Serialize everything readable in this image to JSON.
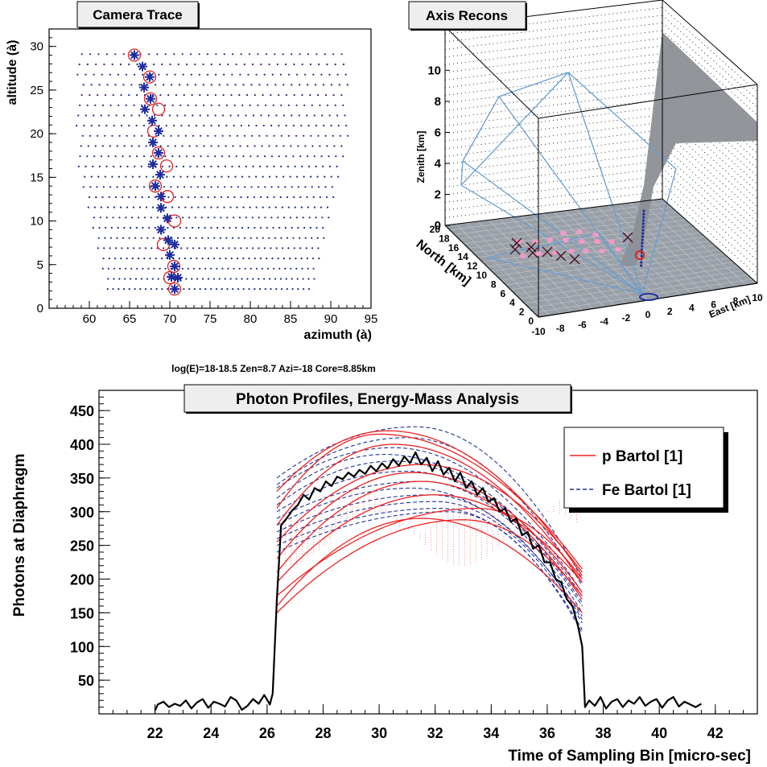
{
  "camera_panel": {
    "title": "Camera Trace",
    "xlabel": "azimuth (à)",
    "ylabel": "altitude (à)"
  },
  "axis_panel": {
    "title": "Axis Recons",
    "zlabel": "Zenith [km]",
    "north_label": "North [km]",
    "east_label": "East [km]",
    "z_ticks": [
      "0",
      "2",
      "4",
      "6",
      "8",
      "10"
    ],
    "north_ticks": [
      "0",
      "2",
      "4",
      "6",
      "8",
      "10",
      "12",
      "14",
      "16",
      "18",
      "20"
    ],
    "east_ticks": [
      "-10",
      "-8",
      "-6",
      "-4",
      "-2",
      "0",
      "2",
      "4",
      "6",
      "8",
      "10"
    ]
  },
  "event_info": "log(E)=18-18.5   Zen=8.7   Azi=-18   Core=8.85km",
  "profile_panel": {
    "title": "Photon Profiles, Energy-Mass Analysis",
    "xlabel": "Time of Sampling Bin [micro-sec]",
    "ylabel": "Photons at Diaphragm",
    "legend": [
      {
        "label": "p Bartol [1]",
        "color": "#ee2222",
        "style": "solid"
      },
      {
        "label": "Fe Bartol [1]",
        "color": "#223399",
        "style": "dashed"
      }
    ]
  },
  "chart_data": [
    {
      "type": "scatter",
      "title": "Camera Trace",
      "xlabel": "azimuth (à)",
      "ylabel": "altitude (à)",
      "xlim": [
        55,
        95
      ],
      "ylim": [
        0,
        32
      ],
      "xticks": [
        60,
        65,
        70,
        75,
        80,
        85,
        90,
        95
      ],
      "yticks": [
        0,
        5,
        10,
        15,
        20,
        25,
        30
      ],
      "grid": false,
      "hit_pixels": [
        [
          65.6,
          29.0
        ],
        [
          66.6,
          27.7
        ],
        [
          67.5,
          26.5
        ],
        [
          66.8,
          25.3
        ],
        [
          67.6,
          24.0
        ],
        [
          66.9,
          22.8
        ],
        [
          67.8,
          21.5
        ],
        [
          68.6,
          20.3
        ],
        [
          67.9,
          19.0
        ],
        [
          68.6,
          17.8
        ],
        [
          67.9,
          16.5
        ],
        [
          68.8,
          15.3
        ],
        [
          68.2,
          14.0
        ],
        [
          68.9,
          12.8
        ],
        [
          68.9,
          11.5
        ],
        [
          69.7,
          10.3
        ],
        [
          68.9,
          9.0
        ],
        [
          69.8,
          7.8
        ],
        [
          70.6,
          7.3
        ],
        [
          70.0,
          6.1
        ],
        [
          70.6,
          4.8
        ],
        [
          70.2,
          3.6
        ],
        [
          71.0,
          3.5
        ],
        [
          70.6,
          2.2
        ]
      ],
      "fitted_circles": [
        [
          65.6,
          29.0
        ],
        [
          67.5,
          26.5
        ],
        [
          67.6,
          24.0
        ],
        [
          68.6,
          22.8
        ],
        [
          68.0,
          20.3
        ],
        [
          68.6,
          17.8
        ],
        [
          69.6,
          16.3
        ],
        [
          68.2,
          14.0
        ],
        [
          69.7,
          12.8
        ],
        [
          70.6,
          10.0
        ],
        [
          69.2,
          7.3
        ],
        [
          70.5,
          4.8
        ],
        [
          70.0,
          3.5
        ],
        [
          70.6,
          2.2
        ]
      ]
    },
    {
      "type": "scatter",
      "title": "Axis Recons",
      "zlabel": "Zenith [km]",
      "xlabel": "East [km]",
      "ylabel": "North [km]",
      "xlim": [
        -10,
        10
      ],
      "ylim": [
        0,
        20
      ],
      "zlim": [
        0,
        10
      ],
      "cross_marks": 8
    },
    {
      "type": "line",
      "title": "Photon Profiles, Energy-Mass Analysis",
      "xlabel": "Time of Sampling Bin [micro-sec]",
      "ylabel": "Photons at Diaphragm",
      "xlim": [
        20,
        43.5
      ],
      "ylim": [
        0,
        480
      ],
      "xticks": [
        22,
        24,
        26,
        28,
        30,
        32,
        34,
        36,
        38,
        40,
        42
      ],
      "yticks": [
        50,
        100,
        150,
        200,
        250,
        300,
        350,
        400,
        450
      ],
      "legend_position": "top-right",
      "series": [
        {
          "name": "p Bartol [1]",
          "color": "#ee2222",
          "style": "solid",
          "curves": [
            {
              "start": 330,
              "peak": 420,
              "tpeak": 30.3,
              "end": 205
            },
            {
              "start": 305,
              "peak": 415,
              "tpeak": 30.0,
              "end": 215
            },
            {
              "start": 280,
              "peak": 400,
              "tpeak": 30.5,
              "end": 195
            },
            {
              "start": 255,
              "peak": 370,
              "tpeak": 31.5,
              "end": 210
            },
            {
              "start": 230,
              "peak": 358,
              "tpeak": 31.2,
              "end": 180
            },
            {
              "start": 210,
              "peak": 345,
              "tpeak": 31.5,
              "end": 170
            },
            {
              "start": 195,
              "peak": 325,
              "tpeak": 32.0,
              "end": 195
            },
            {
              "start": 175,
              "peak": 305,
              "tpeak": 33.5,
              "end": 200
            },
            {
              "start": 160,
              "peak": 290,
              "tpeak": 31.5,
              "end": 150
            },
            {
              "start": 150,
              "peak": 288,
              "tpeak": 33.0,
              "end": 175
            }
          ]
        },
        {
          "name": "Fe Bartol [1]",
          "color": "#223399",
          "style": "dashed",
          "curves": [
            {
              "start": 350,
              "peak": 426,
              "tpeak": 31.3,
              "end": 200
            },
            {
              "start": 340,
              "peak": 410,
              "tpeak": 31.0,
              "end": 190
            },
            {
              "start": 335,
              "peak": 395,
              "tpeak": 30.5,
              "end": 180
            },
            {
              "start": 320,
              "peak": 385,
              "tpeak": 30.2,
              "end": 175
            },
            {
              "start": 310,
              "peak": 375,
              "tpeak": 30.5,
              "end": 165
            },
            {
              "start": 300,
              "peak": 360,
              "tpeak": 31.0,
              "end": 160
            },
            {
              "start": 290,
              "peak": 345,
              "tpeak": 31.5,
              "end": 150
            },
            {
              "start": 280,
              "peak": 335,
              "tpeak": 31.2,
              "end": 145
            },
            {
              "start": 270,
              "peak": 325,
              "tpeak": 31.8,
              "end": 140
            },
            {
              "start": 260,
              "peak": 315,
              "tpeak": 32.0,
              "end": 135
            },
            {
              "start": 250,
              "peak": 305,
              "tpeak": 32.2,
              "end": 125
            },
            {
              "start": 240,
              "peak": 300,
              "tpeak": 32.5,
              "end": 120
            }
          ]
        },
        {
          "name": "",
          "color": "#000000",
          "style": "solid",
          "points": [
            [
              22.0,
              5
            ],
            [
              22.1,
              14
            ],
            [
              22.3,
              18
            ],
            [
              22.5,
              10
            ],
            [
              22.7,
              15
            ],
            [
              22.9,
              12
            ],
            [
              23.1,
              20
            ],
            [
              23.3,
              8
            ],
            [
              23.5,
              17
            ],
            [
              23.7,
              22
            ],
            [
              23.9,
              9
            ],
            [
              24.1,
              18
            ],
            [
              24.3,
              15
            ],
            [
              24.5,
              11
            ],
            [
              24.7,
              25
            ],
            [
              24.9,
              20
            ],
            [
              25.1,
              6
            ],
            [
              25.3,
              12
            ],
            [
              25.5,
              22
            ],
            [
              25.7,
              15
            ],
            [
              25.9,
              28
            ],
            [
              26.1,
              14
            ],
            [
              26.2,
              30
            ],
            [
              26.35,
              170
            ],
            [
              26.5,
              280
            ],
            [
              26.7,
              290
            ],
            [
              26.9,
              302
            ],
            [
              27.1,
              310
            ],
            [
              27.3,
              325
            ],
            [
              27.5,
              318
            ],
            [
              27.7,
              335
            ],
            [
              27.9,
              330
            ],
            [
              28.1,
              345
            ],
            [
              28.3,
              338
            ],
            [
              28.5,
              352
            ],
            [
              28.7,
              348
            ],
            [
              28.9,
              358
            ],
            [
              29.1,
              352
            ],
            [
              29.3,
              362
            ],
            [
              29.5,
              356
            ],
            [
              29.7,
              368
            ],
            [
              29.9,
              360
            ],
            [
              30.1,
              372
            ],
            [
              30.3,
              364
            ],
            [
              30.5,
              378
            ],
            [
              30.7,
              368
            ],
            [
              30.9,
              382
            ],
            [
              31.1,
              372
            ],
            [
              31.3,
              388
            ],
            [
              31.5,
              370
            ],
            [
              31.7,
              380
            ],
            [
              31.9,
              360
            ],
            [
              32.1,
              375
            ],
            [
              32.3,
              355
            ],
            [
              32.5,
              365
            ],
            [
              32.7,
              345
            ],
            [
              32.9,
              358
            ],
            [
              33.1,
              335
            ],
            [
              33.3,
              345
            ],
            [
              33.5,
              325
            ],
            [
              33.7,
              335
            ],
            [
              33.9,
              315
            ],
            [
              34.1,
              320
            ],
            [
              34.3,
              300
            ],
            [
              34.5,
              305
            ],
            [
              34.7,
              285
            ],
            [
              34.9,
              290
            ],
            [
              35.1,
              265
            ],
            [
              35.3,
              270
            ],
            [
              35.5,
              245
            ],
            [
              35.7,
              250
            ],
            [
              35.9,
              225
            ],
            [
              36.1,
              225
            ],
            [
              36.3,
              200
            ],
            [
              36.5,
              195
            ],
            [
              36.7,
              170
            ],
            [
              36.9,
              160
            ],
            [
              37.1,
              130
            ],
            [
              37.25,
              100
            ],
            [
              37.35,
              10
            ],
            [
              37.5,
              20
            ],
            [
              37.7,
              12
            ],
            [
              37.9,
              25
            ],
            [
              38.1,
              8
            ],
            [
              38.3,
              18
            ],
            [
              38.5,
              22
            ],
            [
              38.7,
              10
            ],
            [
              38.9,
              20
            ],
            [
              39.1,
              15
            ],
            [
              39.3,
              25
            ],
            [
              39.5,
              12
            ],
            [
              39.7,
              18
            ],
            [
              39.9,
              22
            ],
            [
              40.1,
              9
            ],
            [
              40.3,
              20
            ],
            [
              40.5,
              25
            ],
            [
              40.7,
              11
            ],
            [
              40.9,
              18
            ],
            [
              41.1,
              14
            ],
            [
              41.3,
              10
            ],
            [
              41.5,
              15
            ]
          ]
        }
      ]
    }
  ]
}
